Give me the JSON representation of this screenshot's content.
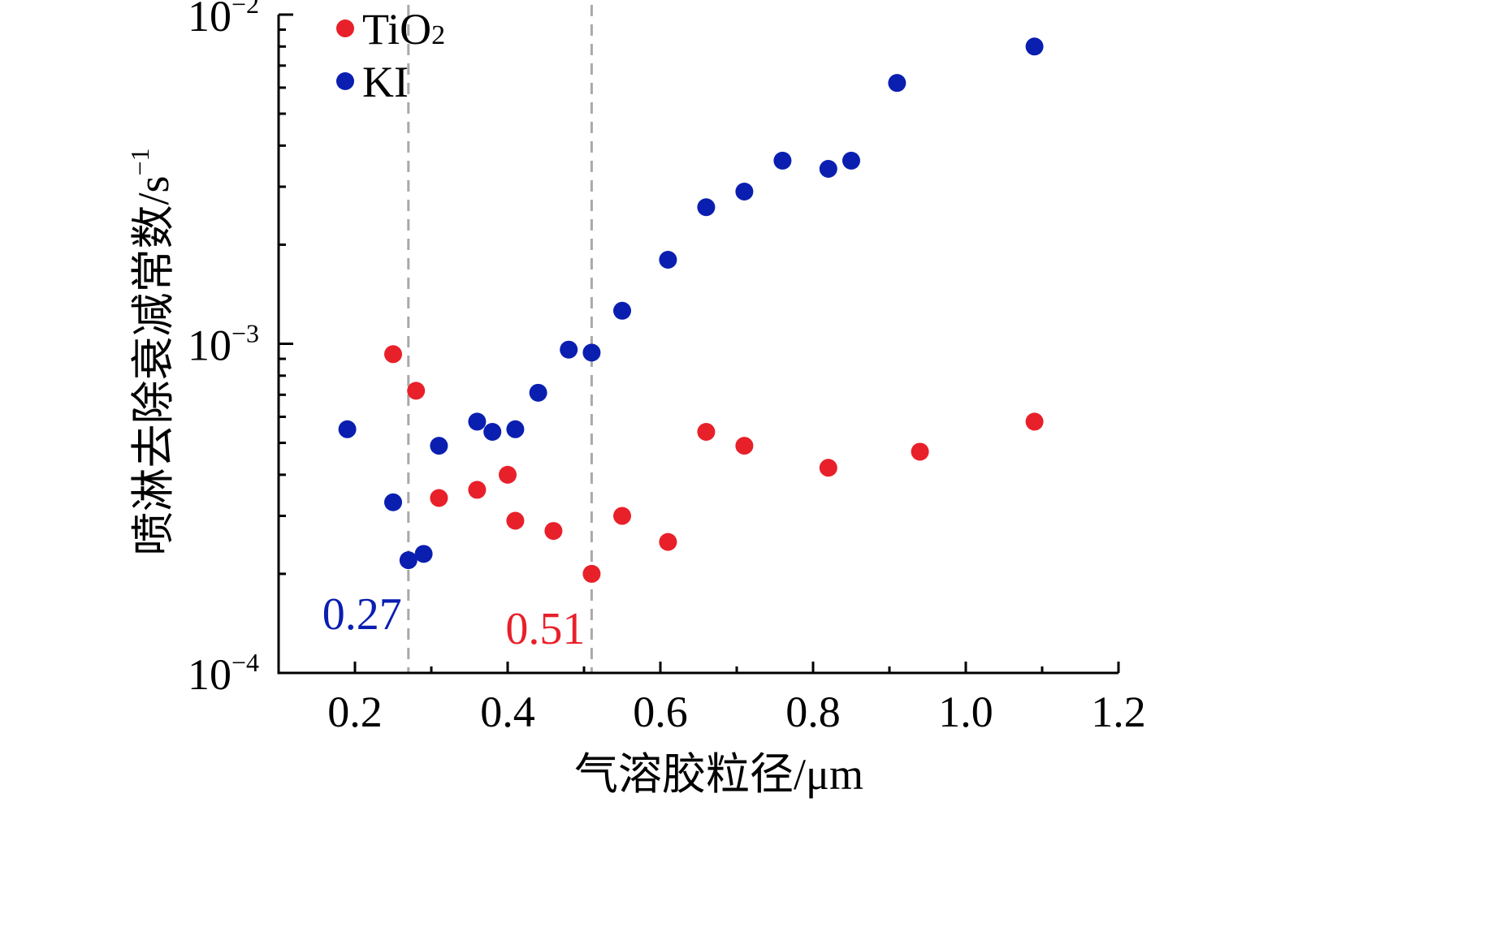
{
  "chart_data": {
    "type": "scatter",
    "xlabel": "气溶胶粒径/μm",
    "ylabel": "喷淋去除衰减常数/s",
    "ylabel_sup": "−1",
    "yscale": "log",
    "xlim": [
      0.1,
      1.2
    ],
    "ylim": [
      0.0001,
      0.01
    ],
    "x_ticks": [
      {
        "value": 0.2,
        "label": "0.2"
      },
      {
        "value": 0.4,
        "label": "0.4"
      },
      {
        "value": 0.6,
        "label": "0.6"
      },
      {
        "value": 0.8,
        "label": "0.8"
      },
      {
        "value": 1.0,
        "label": "1.0"
      },
      {
        "value": 1.2,
        "label": "1.2"
      }
    ],
    "y_ticks": [
      {
        "value": 0.0001,
        "base": "10",
        "exp": "−4"
      },
      {
        "value": 0.001,
        "base": "10",
        "exp": "−3"
      },
      {
        "value": 0.01,
        "base": "10",
        "exp": "−2"
      }
    ],
    "legend_position": "top-left",
    "series": [
      {
        "name_main": "TiO",
        "name_sub": "2",
        "color": "#e8202a",
        "points": [
          {
            "x": 0.25,
            "y": 0.00093
          },
          {
            "x": 0.28,
            "y": 0.00072
          },
          {
            "x": 0.31,
            "y": 0.00034
          },
          {
            "x": 0.36,
            "y": 0.00036
          },
          {
            "x": 0.4,
            "y": 0.0004
          },
          {
            "x": 0.41,
            "y": 0.00029
          },
          {
            "x": 0.46,
            "y": 0.00027
          },
          {
            "x": 0.51,
            "y": 0.0002
          },
          {
            "x": 0.55,
            "y": 0.0003
          },
          {
            "x": 0.61,
            "y": 0.00025
          },
          {
            "x": 0.66,
            "y": 0.00054
          },
          {
            "x": 0.71,
            "y": 0.00049
          },
          {
            "x": 0.82,
            "y": 0.00042
          },
          {
            "x": 0.94,
            "y": 0.00047
          },
          {
            "x": 1.09,
            "y": 0.00058
          }
        ]
      },
      {
        "name_main": "KI",
        "name_sub": "",
        "color": "#0a1fb0",
        "points": [
          {
            "x": 0.19,
            "y": 0.00055
          },
          {
            "x": 0.25,
            "y": 0.00033
          },
          {
            "x": 0.27,
            "y": 0.00022
          },
          {
            "x": 0.29,
            "y": 0.00023
          },
          {
            "x": 0.31,
            "y": 0.00049
          },
          {
            "x": 0.36,
            "y": 0.00058
          },
          {
            "x": 0.38,
            "y": 0.00054
          },
          {
            "x": 0.41,
            "y": 0.00055
          },
          {
            "x": 0.44,
            "y": 0.00071
          },
          {
            "x": 0.48,
            "y": 0.00096
          },
          {
            "x": 0.51,
            "y": 0.00094
          },
          {
            "x": 0.55,
            "y": 0.00126
          },
          {
            "x": 0.61,
            "y": 0.0018
          },
          {
            "x": 0.66,
            "y": 0.0026
          },
          {
            "x": 0.71,
            "y": 0.0029
          },
          {
            "x": 0.76,
            "y": 0.0036
          },
          {
            "x": 0.82,
            "y": 0.0034
          },
          {
            "x": 0.85,
            "y": 0.0036
          },
          {
            "x": 0.91,
            "y": 0.0062
          },
          {
            "x": 1.09,
            "y": 0.008
          }
        ]
      }
    ],
    "reference_lines": [
      {
        "x": 0.27,
        "label": "0.27",
        "color": "#0a1fb0",
        "label_side": "left"
      },
      {
        "x": 0.51,
        "label": "0.51",
        "color": "#e8202a",
        "label_side": "left"
      }
    ]
  }
}
